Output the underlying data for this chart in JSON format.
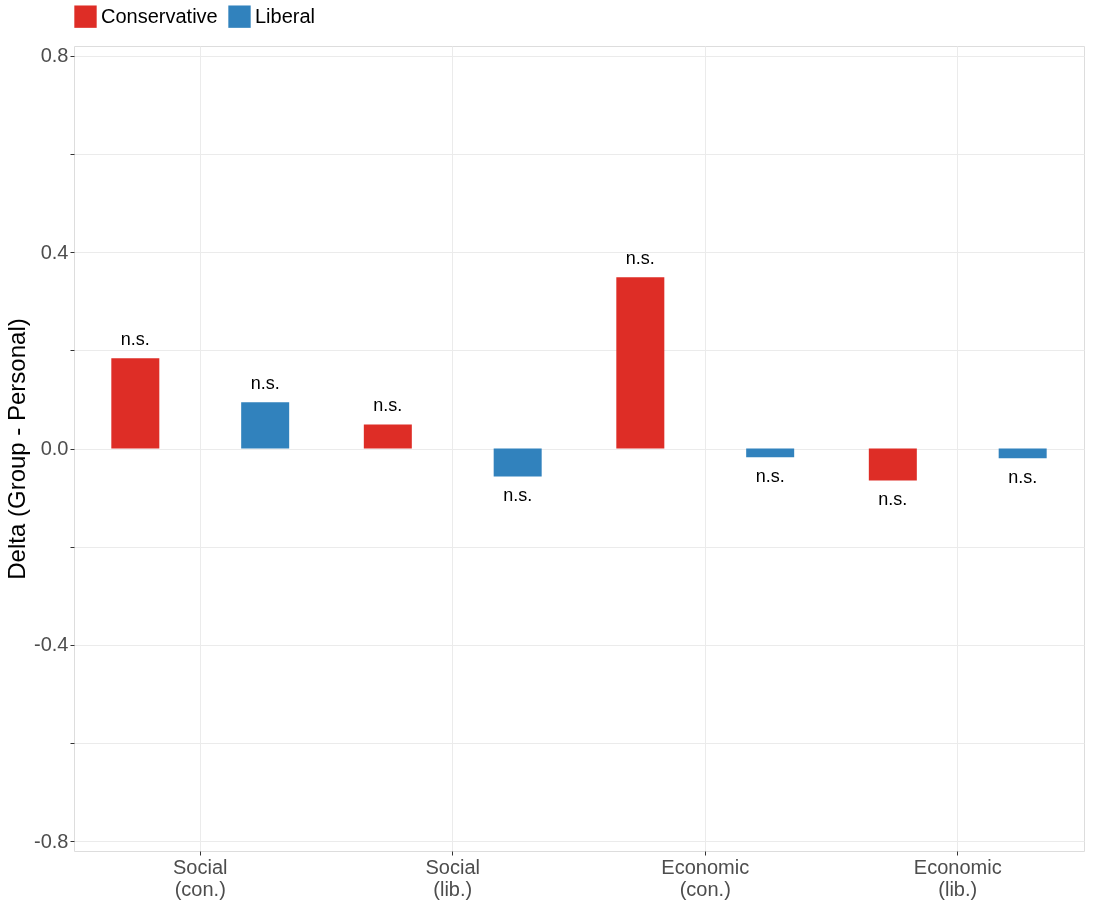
{
  "chart_data": {
    "type": "bar",
    "ylabel": "Delta (Group - Personal)",
    "categories": [
      "Social\n(con.)",
      "Social\n(lib.)",
      "Economic\n(con.)",
      "Economic\n(lib.)"
    ],
    "series": [
      {
        "name": "Conservative",
        "color": "#de2d26",
        "values": [
          0.184,
          0.049,
          0.349,
          -0.065
        ],
        "value_labels": [
          "n.s.",
          "n.s.",
          "n.s.",
          "n.s."
        ]
      },
      {
        "name": "Liberal",
        "color": "#3182bd",
        "values": [
          0.094,
          -0.057,
          -0.018,
          -0.02
        ],
        "value_labels": [
          "n.s.",
          "n.s.",
          "n.s.",
          "n.s."
        ]
      }
    ],
    "ylim": [
      -0.82,
      0.82
    ],
    "yticks": [
      {
        "value": -0.8,
        "label": "-0.8"
      },
      {
        "value": -0.6,
        "label": null
      },
      {
        "value": -0.4,
        "label": "-0.4"
      },
      {
        "value": -0.2,
        "label": null
      },
      {
        "value": 0,
        "label": "0.0"
      },
      {
        "value": 0.2,
        "label": null
      },
      {
        "value": 0.4,
        "label": "0.4"
      },
      {
        "value": 0.6,
        "label": null
      },
      {
        "value": 0.8,
        "label": "0.8"
      }
    ],
    "grid": true,
    "legend": "top"
  }
}
